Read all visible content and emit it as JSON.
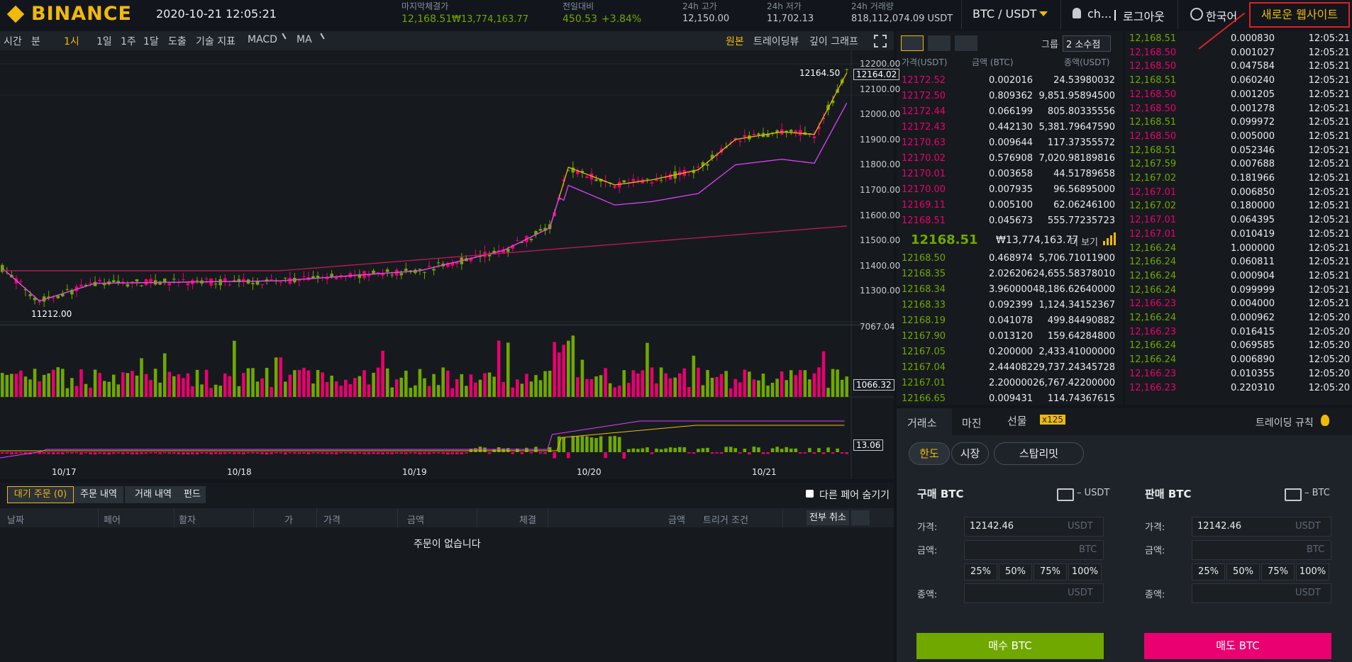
{
  "header": {
    "logo": "BINANCE",
    "datetime": "2020-10-21 12:05:21",
    "last_price": {
      "label": "마지막체결가",
      "value": "12,168.51",
      "krw": "₩13,774,163.77"
    },
    "change": {
      "label": "전일대비",
      "value": "450.53",
      "percent": "+3.84%"
    },
    "high": {
      "label": "24h 고가",
      "value": "12,150.00"
    },
    "low": {
      "label": "24h 저가",
      "value": "11,702.13"
    },
    "volume": {
      "label": "24h 거래량",
      "value": "818,112,074.09 USDT"
    },
    "pair": "BTC / USDT",
    "user": "ch...",
    "logout": "로그아웃",
    "language": "한국어",
    "new_site": "새로운 웹사이트"
  },
  "chart_toolbar": {
    "left": [
      "시간",
      "분",
      "1시",
      "1일",
      "1주",
      "1달",
      "도출",
      "기술 지표",
      "MACD",
      "MA"
    ],
    "right": [
      "원본",
      "트레이딩뷰",
      "깊이 그래프"
    ]
  },
  "price_chart": {
    "price_labels": [
      "12200.00",
      "12100.00",
      "12000.00",
      "11900.00",
      "11800.00",
      "11700.00",
      "11600.00",
      "11500.00",
      "11400.00",
      "11300.00"
    ],
    "current_price": "12164.02",
    "high_marker": "12164.50",
    "low_marker": "11212.00",
    "volume_labels": [
      "7067.04",
      "1066.32"
    ],
    "macd_label": "13.06",
    "dates": [
      "10/17",
      "10/18",
      "10/19",
      "10/20",
      "10/21"
    ]
  },
  "order_book": {
    "group_label": "그룹",
    "group_value": "2 소수점",
    "columns": [
      "가격(USDT)",
      "금액 (BTC)",
      "종액(USDT)"
    ],
    "asks": [
      [
        "12172.52",
        "0.002016",
        "24.53980032"
      ],
      [
        "12172.50",
        "0.809362",
        "9,851.95894500"
      ],
      [
        "12172.44",
        "0.066199",
        "805.80335556"
      ],
      [
        "12172.43",
        "0.442130",
        "5,381.79647590"
      ],
      [
        "12170.63",
        "0.009644",
        "117.37355572"
      ],
      [
        "12170.02",
        "0.576908",
        "7,020.98189816"
      ],
      [
        "12170.01",
        "0.003658",
        "44.51789658"
      ],
      [
        "12170.00",
        "0.007935",
        "96.56895000"
      ],
      [
        "12169.11",
        "0.005100",
        "62.06246100"
      ],
      [
        "12168.51",
        "0.045673",
        "555.77235723"
      ]
    ],
    "last_price": "12168.51",
    "last_price_krw": "₩13,774,163.77",
    "more": "더 보기",
    "bids": [
      [
        "12168.50",
        "0.468974",
        "5,706.71011900"
      ],
      [
        "12168.35",
        "2.026206",
        "24,655.58378010"
      ],
      [
        "12168.34",
        "3.960000",
        "48,186.62640000"
      ],
      [
        "12168.33",
        "0.092399",
        "1,124.34152367"
      ],
      [
        "12168.19",
        "0.041078",
        "499.84490882"
      ],
      [
        "12167.90",
        "0.013120",
        "159.64284800"
      ],
      [
        "12167.05",
        "0.200000",
        "2,433.41000000"
      ],
      [
        "12167.04",
        "2.444082",
        "29,737.24345728"
      ],
      [
        "12167.01",
        "2.200000",
        "26,767.42200000"
      ],
      [
        "12166.65",
        "0.009431",
        "114.74367615"
      ]
    ]
  },
  "trades": [
    {
      "price": "12,168.51",
      "amount": "0.000830",
      "time": "12:05:21",
      "color": "#70a800"
    },
    {
      "price": "12,168.50",
      "amount": "0.001027",
      "time": "12:05:21",
      "color": "#ea0070"
    },
    {
      "price": "12,168.50",
      "amount": "0.047584",
      "time": "12:05:21",
      "color": "#ea0070"
    },
    {
      "price": "12,168.51",
      "amount": "0.060240",
      "time": "12:05:21",
      "color": "#70a800"
    },
    {
      "price": "12,168.50",
      "amount": "0.001205",
      "time": "12:05:21",
      "color": "#ea0070"
    },
    {
      "price": "12,168.50",
      "amount": "0.001278",
      "time": "12:05:21",
      "color": "#ea0070"
    },
    {
      "price": "12,168.51",
      "amount": "0.099972",
      "time": "12:05:21",
      "color": "#70a800"
    },
    {
      "price": "12,168.50",
      "amount": "0.005000",
      "time": "12:05:21",
      "color": "#ea0070"
    },
    {
      "price": "12,168.51",
      "amount": "0.052346",
      "time": "12:05:21",
      "color": "#70a800"
    },
    {
      "price": "12,167.59",
      "amount": "0.007688",
      "time": "12:05:21",
      "color": "#70a800"
    },
    {
      "price": "12,167.02",
      "amount": "0.181966",
      "time": "12:05:21",
      "color": "#70a800"
    },
    {
      "price": "12,167.01",
      "amount": "0.006850",
      "time": "12:05:21",
      "color": "#ea0070"
    },
    {
      "price": "12,167.02",
      "amount": "0.180000",
      "time": "12:05:21",
      "color": "#70a800"
    },
    {
      "price": "12,167.01",
      "amount": "0.064395",
      "time": "12:05:21",
      "color": "#ea0070"
    },
    {
      "price": "12,167.01",
      "amount": "0.010419",
      "time": "12:05:21",
      "color": "#ea0070"
    },
    {
      "price": "12,166.24",
      "amount": "1.000000",
      "time": "12:05:21",
      "color": "#70a800"
    },
    {
      "price": "12,166.24",
      "amount": "0.060811",
      "time": "12:05:21",
      "color": "#70a800"
    },
    {
      "price": "12,166.24",
      "amount": "0.000904",
      "time": "12:05:21",
      "color": "#70a800"
    },
    {
      "price": "12,166.24",
      "amount": "0.099999",
      "time": "12:05:21",
      "color": "#70a800"
    },
    {
      "price": "12,166.23",
      "amount": "0.004000",
      "time": "12:05:21",
      "color": "#ea0070"
    },
    {
      "price": "12,166.24",
      "amount": "0.000962",
      "time": "12:05:20",
      "color": "#70a800"
    },
    {
      "price": "12,166.23",
      "amount": "0.016415",
      "time": "12:05:20",
      "color": "#ea0070"
    },
    {
      "price": "12,166.24",
      "amount": "0.069585",
      "time": "12:05:20",
      "color": "#70a800"
    },
    {
      "price": "12,166.24",
      "amount": "0.006890",
      "time": "12:05:20",
      "color": "#70a800"
    },
    {
      "price": "12,166.23",
      "amount": "0.010355",
      "time": "12:05:20",
      "color": "#ea0070"
    },
    {
      "price": "12,166.23",
      "amount": "0.220310",
      "time": "12:05:20",
      "color": "#ea0070"
    }
  ],
  "order_form": {
    "tabs": [
      "거래소",
      "마진",
      "선물"
    ],
    "leverage": "x125",
    "rules": "트레이딩 규칙",
    "types": [
      "한도",
      "시장",
      "스탑리밋"
    ],
    "buy": {
      "title": "구매 BTC",
      "balance": "– USDT",
      "price_label": "가격:",
      "price": "12142.46",
      "price_unit": "USDT",
      "amount_label": "금액:",
      "amount_unit": "BTC",
      "total_label": "종액:",
      "total_unit": "USDT",
      "button": "매수 BTC"
    },
    "sell": {
      "title": "판매 BTC",
      "balance": "– BTC",
      "price_label": "가격:",
      "price": "12142.46",
      "price_unit": "USDT",
      "amount_label": "금액:",
      "amount_unit": "BTC",
      "total_label": "종액:",
      "total_unit": "USDT",
      "button": "매도 BTC"
    },
    "percents": [
      "25%",
      "50%",
      "75%",
      "100%"
    ]
  },
  "open_orders": {
    "tabs": [
      "대기 주문 (0)",
      "주문 내역",
      "거래 내역",
      "펀드"
    ],
    "hide_other": "다른 페어 숨기기",
    "columns": [
      "날짜",
      "페어",
      "활자",
      "가",
      "가격",
      "금액",
      "체결",
      "금액",
      "트리거 조건"
    ],
    "cancel_all": "전부 취소",
    "empty": "주문이 없습니다"
  }
}
